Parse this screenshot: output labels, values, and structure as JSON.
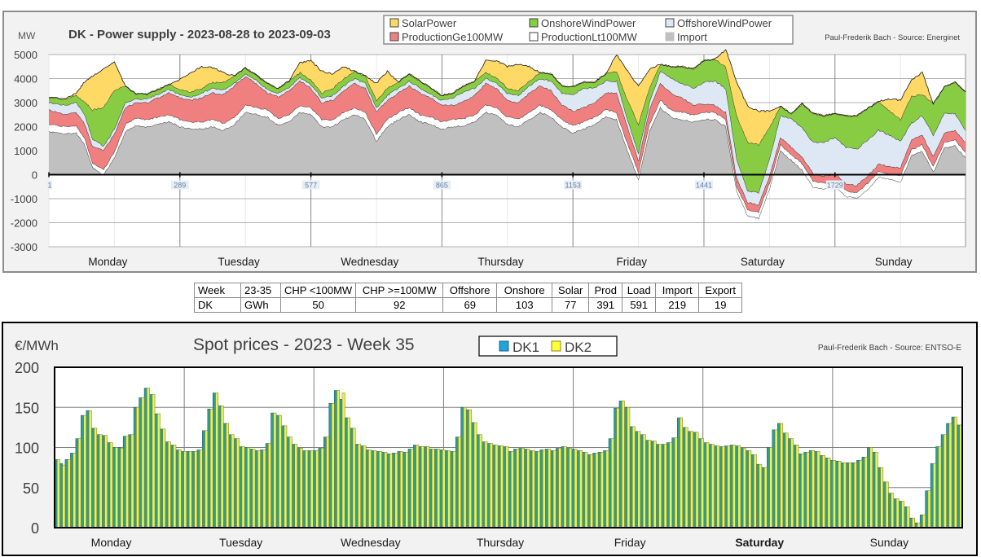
{
  "chart_data": [
    {
      "type": "area",
      "stacked": true,
      "title": "DK - Power supply - 2023-08-28 to 2023-09-03",
      "ylabel": "MW",
      "credit": "Paul-Frederik Bach - Source: Energinet",
      "ylim": [
        -3000,
        5000
      ],
      "yticks": [
        "5000",
        "4000",
        "3000",
        "2000",
        "1000",
        "0",
        "-1000",
        "-2000",
        "-3000"
      ],
      "ytick_values": [
        5000,
        4000,
        3000,
        2000,
        1000,
        0,
        -1000,
        -2000,
        -3000
      ],
      "xlim": [
        1,
        2016
      ],
      "xticks": [
        "1",
        "289",
        "577",
        "865",
        "1153",
        "1441",
        "1729"
      ],
      "xtick_values": [
        1,
        289,
        577,
        865,
        1153,
        1441,
        1729
      ],
      "day_labels": [
        "Monday",
        "Tuesday",
        "Wednesday",
        "Thursday",
        "Friday",
        "Saturday",
        "Sunday"
      ],
      "grid": true,
      "legend_position": "top-center",
      "legend": [
        {
          "name": "SolarPower",
          "color": "#ffd966"
        },
        {
          "name": "OnshoreWindPower",
          "color": "#88cc44"
        },
        {
          "name": "OffshoreWindPower",
          "color": "#dde8f4"
        },
        {
          "name": "ProductionGe100MW",
          "color": "#f08080"
        },
        {
          "name": "ProductionLt100MW",
          "color": "#ffffff"
        },
        {
          "name": "Import",
          "color": "#c0c0c0"
        }
      ],
      "approx_series_hourly_x": [
        1,
        37,
        61,
        79,
        97,
        121,
        145,
        169,
        193,
        217,
        241,
        265,
        289,
        313,
        337,
        361,
        385,
        409,
        433,
        457,
        481,
        505,
        529,
        553,
        577,
        601,
        625,
        649,
        673,
        697,
        721,
        745,
        769,
        793,
        817,
        841,
        865,
        889,
        913,
        937,
        961,
        985,
        1009,
        1033,
        1057,
        1081,
        1105,
        1129,
        1153,
        1177,
        1201,
        1225,
        1249,
        1273,
        1297,
        1321,
        1345,
        1369,
        1393,
        1417,
        1441,
        1465,
        1489,
        1513,
        1537,
        1561,
        1585,
        1609,
        1633,
        1657,
        1681,
        1705,
        1729,
        1753,
        1777,
        1801,
        1825,
        1849,
        1873,
        1897,
        1921,
        1945,
        1969,
        1993,
        2016
      ],
      "series": [
        {
          "name": "Import",
          "values": [
            1800,
            1700,
            1750,
            1300,
            300,
            0,
            700,
            1800,
            2050,
            2000,
            2100,
            2200,
            2000,
            1900,
            1900,
            2000,
            1850,
            2100,
            2600,
            2500,
            2400,
            2050,
            2200,
            2600,
            2500,
            2000,
            2000,
            2300,
            2500,
            2300,
            1400,
            2000,
            2300,
            2500,
            2200,
            2100,
            1900,
            2000,
            2050,
            2200,
            2600,
            2500,
            2100,
            2000,
            2300,
            2600,
            2400,
            2000,
            1750,
            1900,
            2100,
            2400,
            2300,
            1000,
            -200,
            1800,
            2800,
            2400,
            2300,
            2200,
            2300,
            2300,
            2000,
            -700,
            -1700,
            -1800,
            -600,
            1000,
            600,
            200,
            -500,
            -600,
            -500,
            -900,
            -1000,
            -600,
            -100,
            -200,
            -300,
            800,
            1000,
            100,
            1100,
            1200,
            700
          ]
        },
        {
          "name": "ProductionLt100MW",
          "values": [
            300,
            300,
            300,
            250,
            200,
            200,
            250,
            300,
            300,
            300,
            300,
            300,
            300,
            300,
            300,
            300,
            300,
            300,
            300,
            300,
            300,
            300,
            300,
            300,
            300,
            300,
            300,
            300,
            300,
            300,
            300,
            300,
            300,
            300,
            300,
            300,
            300,
            300,
            300,
            300,
            300,
            300,
            300,
            300,
            300,
            300,
            300,
            300,
            300,
            300,
            300,
            300,
            300,
            300,
            300,
            300,
            300,
            300,
            300,
            300,
            300,
            300,
            300,
            250,
            250,
            250,
            250,
            250,
            250,
            250,
            250,
            250,
            250,
            250,
            250,
            250,
            250,
            250,
            250,
            250,
            250,
            250,
            250,
            250,
            250
          ]
        },
        {
          "name": "ProductionGe100MW",
          "values": [
            600,
            500,
            550,
            600,
            700,
            800,
            750,
            700,
            650,
            700,
            800,
            900,
            900,
            900,
            1000,
            1100,
            1200,
            1300,
            1200,
            1000,
            700,
            900,
            1000,
            1000,
            800,
            700,
            800,
            900,
            1000,
            1000,
            900,
            800,
            800,
            900,
            900,
            800,
            700,
            600,
            700,
            800,
            900,
            800,
            700,
            700,
            800,
            800,
            800,
            600,
            600,
            600,
            600,
            700,
            800,
            700,
            500,
            600,
            700,
            700,
            600,
            400,
            350,
            300,
            300,
            300,
            300,
            300,
            300,
            300,
            300,
            300,
            300,
            300,
            300,
            300,
            300,
            300,
            300,
            300,
            350,
            400,
            400,
            400,
            400,
            400,
            400
          ]
        },
        {
          "name": "OffshoreWindPower",
          "values": [
            300,
            400,
            400,
            400,
            300,
            200,
            200,
            200,
            150,
            150,
            150,
            150,
            150,
            150,
            200,
            200,
            200,
            100,
            100,
            150,
            150,
            150,
            150,
            150,
            150,
            200,
            200,
            200,
            200,
            200,
            200,
            200,
            200,
            200,
            200,
            150,
            200,
            300,
            400,
            300,
            200,
            200,
            300,
            300,
            300,
            300,
            400,
            500,
            700,
            800,
            600,
            500,
            500,
            300,
            300,
            300,
            500,
            600,
            600,
            700,
            900,
            1000,
            1000,
            800,
            500,
            500,
            700,
            900,
            1200,
            1200,
            1300,
            1400,
            1500,
            1500,
            1500,
            1500,
            1400,
            1300,
            1100,
            700,
            800,
            900,
            800,
            700,
            500
          ]
        },
        {
          "name": "OnshoreWindPower",
          "values": [
            200,
            250,
            300,
            500,
            1200,
            1600,
            1600,
            700,
            200,
            200,
            200,
            200,
            200,
            200,
            200,
            250,
            300,
            300,
            250,
            200,
            250,
            200,
            250,
            200,
            200,
            200,
            300,
            300,
            300,
            300,
            300,
            300,
            250,
            300,
            300,
            250,
            200,
            200,
            250,
            300,
            250,
            250,
            200,
            200,
            200,
            250,
            300,
            300,
            300,
            250,
            250,
            300,
            400,
            800,
            1200,
            600,
            300,
            500,
            700,
            800,
            900,
            900,
            900,
            1800,
            2000,
            2000,
            1300,
            400,
            200,
            1000,
            1200,
            1100,
            1000,
            1300,
            1400,
            1300,
            1200,
            1000,
            900,
            1100,
            900,
            1300,
            1100,
            1300,
            1600
          ]
        },
        {
          "name": "SolarPower",
          "values": [
            0,
            0,
            100,
            800,
            1400,
            1600,
            1200,
            0,
            0,
            0,
            0,
            0,
            400,
            800,
            900,
            600,
            400,
            0,
            0,
            0,
            0,
            0,
            0,
            400,
            800,
            900,
            600,
            500,
            0,
            0,
            700,
            700,
            0,
            0,
            0,
            0,
            0,
            0,
            0,
            0,
            500,
            700,
            900,
            1100,
            600,
            0,
            0,
            0,
            0,
            0,
            0,
            0,
            700,
            1200,
            1600,
            800,
            0,
            0,
            0,
            0,
            0,
            0,
            700,
            1400,
            1500,
            1400,
            700,
            0,
            0,
            0,
            0,
            0,
            0,
            0,
            0,
            0,
            0,
            500,
            800,
            700,
            900,
            0,
            0,
            0,
            0
          ]
        }
      ]
    },
    {
      "type": "bar",
      "title": "Spot prices - 2023 - Week 35",
      "ylabel": "€/MWh",
      "credit": "Paul-Frederik Bach - Source: ENTSO-E",
      "ylim": [
        0,
        200
      ],
      "yticks": [
        "200",
        "150",
        "100",
        "50",
        "0"
      ],
      "ytick_values": [
        200,
        150,
        100,
        50,
        0
      ],
      "day_labels": [
        "Monday",
        "Tuesday",
        "Wednesday",
        "Thursday",
        "Friday",
        "Saturday",
        "Sunday"
      ],
      "grid": true,
      "legend_position": "top-center",
      "legend": [
        {
          "name": "DK1",
          "color": "#1fa5d8"
        },
        {
          "name": "DK2",
          "color": "#ffff33"
        }
      ],
      "hours_per_day": 24,
      "series": [
        {
          "name": "DK1",
          "values": [
            85,
            80,
            85,
            93,
            111,
            140,
            146,
            124,
            116,
            115,
            106,
            100,
            100,
            114,
            116,
            150,
            162,
            174,
            166,
            142,
            123,
            107,
            103,
            97,
            95,
            95,
            95,
            97,
            121,
            148,
            168,
            152,
            130,
            116,
            111,
            101,
            100,
            98,
            96,
            97,
            105,
            143,
            140,
            127,
            113,
            104,
            99,
            96,
            96,
            96,
            99,
            113,
            155,
            171,
            160,
            137,
            124,
            104,
            102,
            97,
            96,
            95,
            94,
            92,
            93,
            95,
            94,
            98,
            103,
            101,
            101,
            98,
            98,
            97,
            96,
            95,
            113,
            150,
            147,
            131,
            116,
            107,
            105,
            103,
            102,
            101,
            95,
            98,
            99,
            98,
            96,
            95,
            97,
            98,
            96,
            99,
            101,
            99,
            98,
            96,
            94,
            91,
            93,
            94,
            96,
            111,
            149,
            158,
            150,
            126,
            120,
            116,
            109,
            108,
            104,
            104,
            106,
            112,
            137,
            125,
            120,
            119,
            111,
            106,
            104,
            102,
            101,
            102,
            103,
            102,
            99,
            96,
            91,
            79,
            75,
            100,
            122,
            130,
            118,
            111,
            103,
            92,
            94,
            96,
            95,
            90,
            87,
            84,
            83,
            81,
            81,
            81,
            84,
            88,
            100,
            94,
            75,
            57,
            43,
            36,
            33,
            26,
            12,
            6,
            16,
            46,
            80,
            101,
            116,
            130,
            138,
            128
          ]
        },
        {
          "name": "DK2",
          "values": [
            85,
            78,
            85,
            93,
            111,
            140,
            146,
            124,
            116,
            115,
            106,
            100,
            99,
            114,
            116,
            150,
            162,
            174,
            166,
            142,
            123,
            107,
            103,
            97,
            95,
            95,
            95,
            97,
            121,
            148,
            168,
            152,
            130,
            116,
            111,
            101,
            100,
            98,
            96,
            97,
            105,
            143,
            140,
            127,
            113,
            104,
            99,
            96,
            96,
            96,
            99,
            113,
            155,
            171,
            168,
            137,
            124,
            104,
            102,
            97,
            96,
            95,
            94,
            92,
            93,
            95,
            94,
            98,
            103,
            101,
            101,
            98,
            98,
            97,
            96,
            95,
            113,
            150,
            147,
            131,
            116,
            107,
            105,
            103,
            102,
            101,
            95,
            98,
            99,
            98,
            96,
            95,
            97,
            98,
            96,
            99,
            101,
            99,
            98,
            96,
            94,
            91,
            93,
            94,
            96,
            111,
            149,
            158,
            150,
            126,
            120,
            116,
            109,
            108,
            104,
            104,
            106,
            112,
            137,
            125,
            120,
            119,
            111,
            106,
            104,
            102,
            101,
            102,
            103,
            102,
            99,
            96,
            91,
            79,
            75,
            100,
            122,
            130,
            118,
            111,
            103,
            92,
            94,
            96,
            95,
            90,
            87,
            84,
            83,
            81,
            81,
            81,
            84,
            88,
            100,
            94,
            75,
            57,
            43,
            36,
            33,
            26,
            12,
            6,
            16,
            46,
            80,
            101,
            116,
            130,
            138,
            128
          ]
        }
      ]
    }
  ],
  "summary_table": {
    "header": [
      "Week",
      "23-35",
      "CHP <100MW",
      "CHP >=100MW",
      "Offshore",
      "Onshore",
      "Solar",
      "Prod",
      "Load",
      "Import",
      "Export"
    ],
    "row": [
      "DK",
      "GWh",
      "50",
      "92",
      "69",
      "103",
      "77",
      "391",
      "591",
      "219",
      "19"
    ]
  }
}
